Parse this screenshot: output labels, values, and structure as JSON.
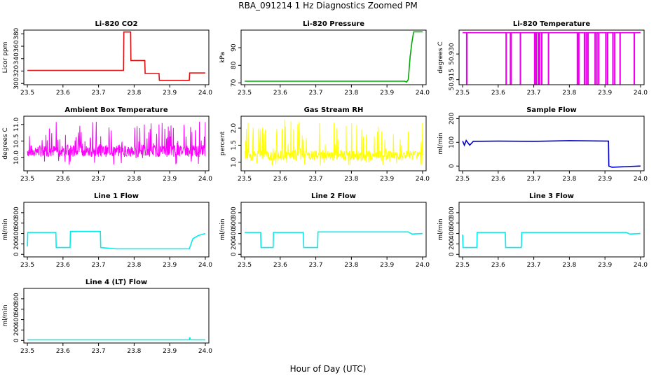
{
  "figure": {
    "title": "RBA_091214  1 Hz Diagnostics Zoomed PM",
    "xlabel": "Hour of Day (UTC)"
  },
  "chart_data": [
    {
      "type": "line",
      "title": "Li-820 CO2",
      "ylabel": "Licor ppm",
      "color": "#dd1111",
      "xlim": [
        23.49,
        24.01
      ],
      "ylim": [
        298,
        386
      ],
      "xticks": [
        "23.5",
        "23.6",
        "23.7",
        "23.8",
        "23.9",
        "24.0"
      ],
      "yticks": [
        "300",
        "320",
        "340",
        "360",
        "380"
      ],
      "x": [
        23.5,
        23.77,
        23.771,
        23.79,
        23.791,
        23.83,
        23.831,
        23.87,
        23.871,
        23.955,
        23.956,
        24.0
      ],
      "y": [
        321,
        321,
        383,
        383,
        337,
        337,
        316,
        316,
        305,
        305,
        317,
        317
      ]
    },
    {
      "type": "line",
      "title": "Li-820 Pressure",
      "ylabel": "kPa",
      "color": "#00aa00",
      "xlim": [
        23.49,
        24.01
      ],
      "ylim": [
        69,
        100
      ],
      "xticks": [
        "23.5",
        "23.6",
        "23.7",
        "23.8",
        "23.9",
        "24.0"
      ],
      "yticks": [
        "70",
        "80",
        "90"
      ],
      "x": [
        23.5,
        23.95,
        23.955,
        23.96,
        23.965,
        23.97,
        23.975,
        24.0
      ],
      "y": [
        71,
        71,
        70.5,
        72,
        85,
        93,
        99,
        99
      ]
    },
    {
      "type": "line",
      "title": "Li-820 Temperature",
      "ylabel": "degrees C",
      "color": "#ee00ee",
      "xlim": [
        23.49,
        24.01
      ],
      "ylim": [
        50.912,
        50.944
      ],
      "xticks": [
        "23.5",
        "23.6",
        "23.7",
        "23.8",
        "23.9",
        "24.0"
      ],
      "yticks": [
        "50.915",
        "50.930"
      ],
      "baseline": 50.9425,
      "spike_low": 50.9125,
      "spikes": [
        23.511,
        23.622,
        23.634,
        23.636,
        23.662,
        23.702,
        23.706,
        23.712,
        23.716,
        23.722,
        23.741,
        23.822,
        23.826,
        23.842,
        23.847,
        23.852,
        23.872,
        23.877,
        23.882,
        23.902,
        23.907,
        23.922,
        23.927,
        23.942,
        23.982
      ]
    },
    {
      "type": "line",
      "title": "Ambient Box Temperature",
      "ylabel": "degrees C",
      "color": "#ff00ff",
      "xlim": [
        23.49,
        24.01
      ],
      "ylim": [
        9.6,
        11.25
      ],
      "xticks": [
        "23.5",
        "23.6",
        "23.7",
        "23.8",
        "23.9",
        "24.0"
      ],
      "yticks": [
        "10.0",
        "10.5",
        "11.0"
      ],
      "noise": {
        "center": 10.2,
        "amp": 0.18,
        "spike_high": 11.1,
        "spike_low": 9.75,
        "seed": 7
      }
    },
    {
      "type": "line",
      "title": "Gas Stream RH",
      "ylabel": "percent",
      "color": "#ffff00",
      "xlim": [
        23.49,
        24.01
      ],
      "ylim": [
        0.75,
        2.35
      ],
      "xticks": [
        "23.5",
        "23.6",
        "23.7",
        "23.8",
        "23.9",
        "24.0"
      ],
      "yticks": [
        "1.0",
        "1.5",
        "2.0"
      ],
      "noise": {
        "center": 1.2,
        "amp": 0.15,
        "spike_high": 2.25,
        "spike_low": 0.9,
        "seed": 13
      }
    },
    {
      "type": "line",
      "title": "Sample Flow",
      "ylabel": "ml/min",
      "color": "#0000cc",
      "xlim": [
        23.49,
        24.01
      ],
      "ylim": [
        -20,
        210
      ],
      "xticks": [
        "23.5",
        "23.6",
        "23.7",
        "23.8",
        "23.9",
        "24.0"
      ],
      "yticks": [
        "0",
        "100",
        "200"
      ],
      "x": [
        23.5,
        23.505,
        23.51,
        23.52,
        23.53,
        23.6,
        23.7,
        23.8,
        23.91,
        23.911,
        23.92,
        24.0
      ],
      "y": [
        105,
        88,
        108,
        88,
        104,
        105,
        104,
        107,
        105,
        0,
        -5,
        0
      ]
    },
    {
      "type": "line",
      "title": "Line 1 Flow",
      "ylabel": "ml/min",
      "color": "#00eeee",
      "xlim": [
        23.49,
        24.01
      ],
      "ylim": [
        -50,
        1000
      ],
      "xticks": [
        "23.5",
        "23.6",
        "23.7",
        "23.8",
        "23.9",
        "24.0"
      ],
      "yticks": [
        "0",
        "200",
        "400",
        "600",
        "800"
      ],
      "x": [
        23.5,
        23.501,
        23.58,
        23.581,
        23.62,
        23.621,
        23.705,
        23.706,
        23.75,
        23.955,
        23.965,
        23.98,
        24.0
      ],
      "y": [
        150,
        420,
        420,
        130,
        130,
        440,
        440,
        130,
        105,
        105,
        300,
        360,
        400
      ]
    },
    {
      "type": "line",
      "title": "Line 2 Flow",
      "ylabel": "ml/min",
      "color": "#00eeee",
      "xlim": [
        23.49,
        24.01
      ],
      "ylim": [
        -50,
        1000
      ],
      "xticks": [
        "23.5",
        "23.6",
        "23.7",
        "23.8",
        "23.9",
        "24.0"
      ],
      "yticks": [
        "0",
        "200",
        "400",
        "600",
        "800"
      ],
      "x": [
        23.5,
        23.545,
        23.546,
        23.58,
        23.581,
        23.665,
        23.666,
        23.705,
        23.706,
        23.96,
        23.97,
        24.0
      ],
      "y": [
        420,
        420,
        130,
        130,
        420,
        420,
        130,
        130,
        430,
        430,
        390,
        400
      ]
    },
    {
      "type": "line",
      "title": "Line 3 Flow",
      "ylabel": "ml/min",
      "color": "#00eeee",
      "xlim": [
        23.49,
        24.01
      ],
      "ylim": [
        -50,
        1000
      ],
      "xticks": [
        "23.5",
        "23.6",
        "23.7",
        "23.8",
        "23.9",
        "24.0"
      ],
      "yticks": [
        "0",
        "200",
        "400",
        "600",
        "800"
      ],
      "x": [
        23.5,
        23.501,
        23.54,
        23.541,
        23.62,
        23.621,
        23.665,
        23.666,
        23.96,
        23.97,
        24.0
      ],
      "y": [
        380,
        130,
        130,
        420,
        420,
        130,
        130,
        420,
        420,
        390,
        400
      ]
    },
    {
      "type": "line",
      "title": "Line 4 (LT) Flow",
      "ylabel": "ml/min",
      "color": "#00eeee",
      "xlim": [
        23.49,
        24.01
      ],
      "ylim": [
        -50,
        1000
      ],
      "xticks": [
        "23.5",
        "23.6",
        "23.7",
        "23.8",
        "23.9",
        "24.0"
      ],
      "yticks": [
        "0",
        "200",
        "400",
        "600",
        "800"
      ],
      "x": [
        23.5,
        23.955,
        23.956,
        23.958,
        23.96,
        24.0
      ],
      "y": [
        10,
        10,
        60,
        20,
        10,
        10
      ]
    }
  ]
}
